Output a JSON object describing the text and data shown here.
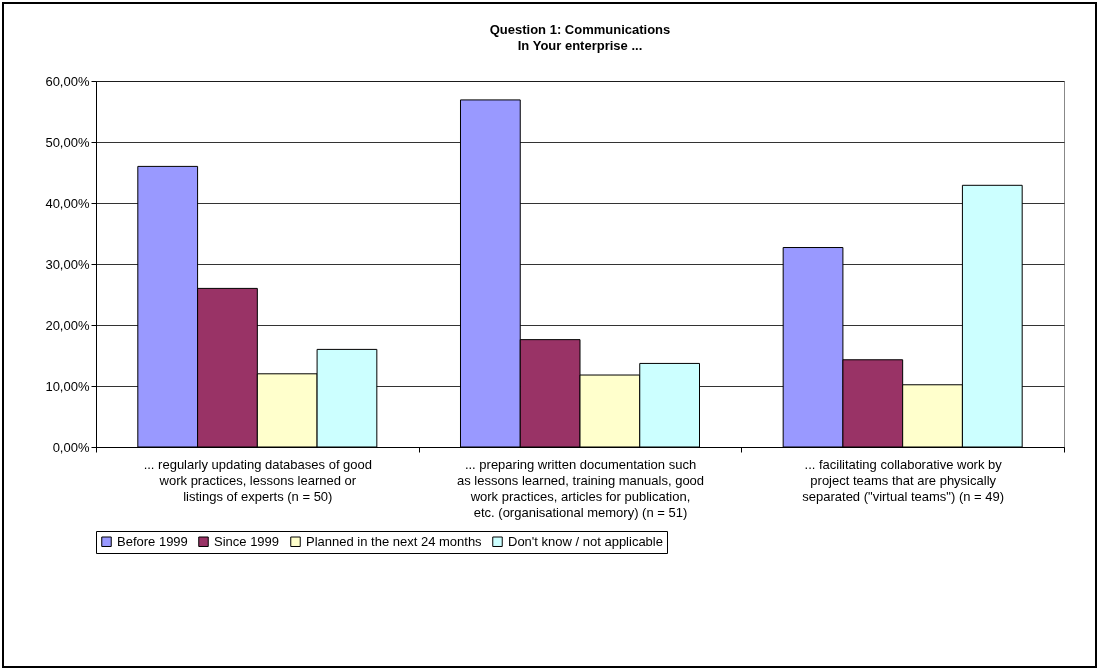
{
  "chart_data": {
    "type": "bar",
    "title": "Question 1: Communications",
    "subtitle": "In Your enterprise ...",
    "categories": [
      "... regularly updating databases of good work practices, lessons learned or listings of experts  (n = 50)",
      "... preparing written documentation such as lessons learned, training manuals, good work practices, articles for publication, etc. (organisational memory)  (n = 51)",
      "... facilitating collaborative work by project teams that are physically separated (\"virtual teams\")  (n = 49)"
    ],
    "series": [
      {
        "name": "Before 1999",
        "color": "#9999ff",
        "values": [
          46,
          56.9,
          32.7
        ]
      },
      {
        "name": "Since 1999",
        "color": "#993366",
        "values": [
          26,
          17.6,
          14.3
        ]
      },
      {
        "name": "Planned in the next 24 months",
        "color": "#ffffcc",
        "values": [
          12,
          11.8,
          10.2
        ]
      },
      {
        "name": "Don't know / not applicable",
        "color": "#ccffff",
        "values": [
          16,
          13.7,
          42.9
        ]
      }
    ],
    "ylim": [
      0,
      60
    ],
    "yticks": [
      {
        "value": 0,
        "label": "0,00%"
      },
      {
        "value": 10,
        "label": "10,00%"
      },
      {
        "value": 20,
        "label": "20,00%"
      },
      {
        "value": 30,
        "label": "30,00%"
      },
      {
        "value": 40,
        "label": "40,00%"
      },
      {
        "value": 50,
        "label": "50,00%"
      },
      {
        "value": 60,
        "label": "60,00%"
      }
    ],
    "grid": "y",
    "legend": "bottom"
  }
}
